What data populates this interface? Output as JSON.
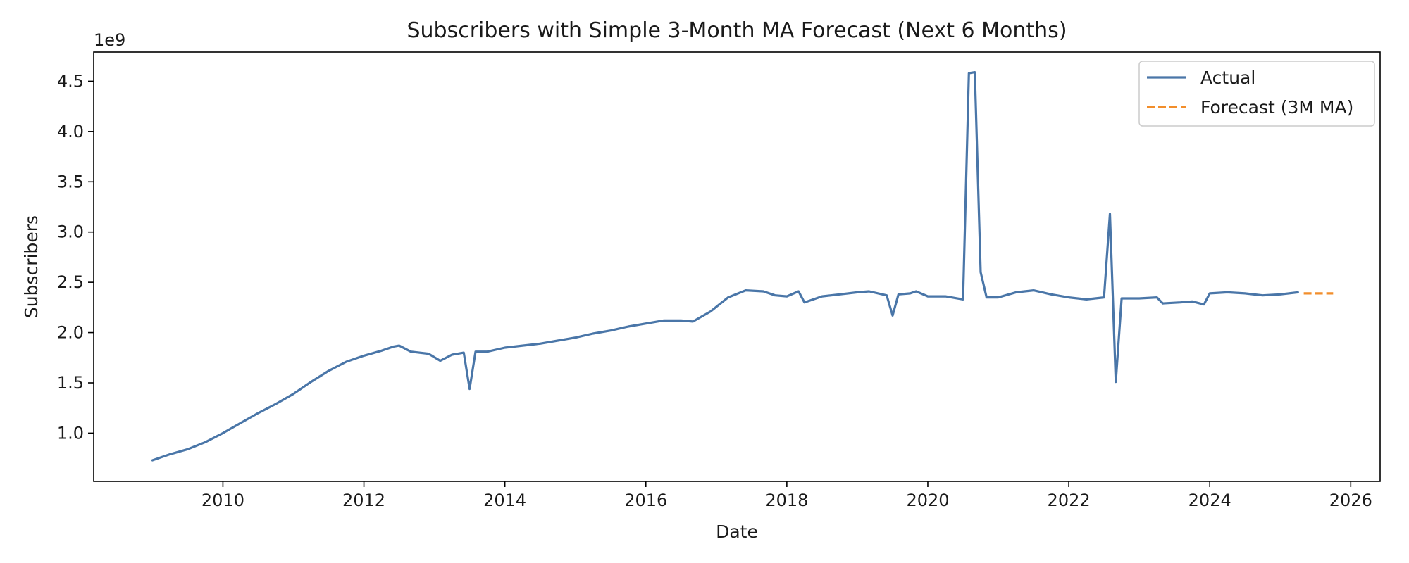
{
  "chart_data": {
    "type": "line",
    "title": "Subscribers with Simple 3-Month MA Forecast (Next 6 Months)",
    "xlabel": "Date",
    "ylabel": "Subscribers",
    "y_offset_label": "1e9",
    "xlim": [
      "2008-03-01",
      "2026-06-01"
    ],
    "ylim": [
      0.52,
      4.79
    ],
    "x_ticks": [
      "2010",
      "2012",
      "2014",
      "2016",
      "2018",
      "2020",
      "2022",
      "2024",
      "2026"
    ],
    "y_ticks": [
      "1.0",
      "1.5",
      "2.0",
      "2.5",
      "3.0",
      "3.5",
      "4.0",
      "4.5"
    ],
    "grid": false,
    "legend_position": "top-right",
    "series": [
      {
        "name": "Actual",
        "color": "#4a76a8",
        "style": "solid",
        "points": [
          [
            "2009-01",
            0.73
          ],
          [
            "2009-02",
            0.75
          ],
          [
            "2009-04",
            0.79
          ],
          [
            "2009-07",
            0.84
          ],
          [
            "2009-10",
            0.91
          ],
          [
            "2010-01",
            1.0
          ],
          [
            "2010-04",
            1.1
          ],
          [
            "2010-07",
            1.2
          ],
          [
            "2010-10",
            1.29
          ],
          [
            "2011-01",
            1.39
          ],
          [
            "2011-04",
            1.51
          ],
          [
            "2011-07",
            1.62
          ],
          [
            "2011-10",
            1.71
          ],
          [
            "2012-01",
            1.77
          ],
          [
            "2012-04",
            1.82
          ],
          [
            "2012-06",
            1.86
          ],
          [
            "2012-07",
            1.87
          ],
          [
            "2012-09",
            1.81
          ],
          [
            "2012-12",
            1.79
          ],
          [
            "2013-02",
            1.72
          ],
          [
            "2013-04",
            1.78
          ],
          [
            "2013-05",
            1.79
          ],
          [
            "2013-06",
            1.8
          ],
          [
            "2013-07",
            1.44
          ],
          [
            "2013-08",
            1.81
          ],
          [
            "2013-10",
            1.81
          ],
          [
            "2014-01",
            1.85
          ],
          [
            "2014-04",
            1.87
          ],
          [
            "2014-07",
            1.89
          ],
          [
            "2014-10",
            1.92
          ],
          [
            "2015-01",
            1.95
          ],
          [
            "2015-04",
            1.99
          ],
          [
            "2015-07",
            2.02
          ],
          [
            "2015-10",
            2.06
          ],
          [
            "2016-01",
            2.09
          ],
          [
            "2016-04",
            2.12
          ],
          [
            "2016-07",
            2.12
          ],
          [
            "2016-09",
            2.11
          ],
          [
            "2016-12",
            2.21
          ],
          [
            "2017-03",
            2.35
          ],
          [
            "2017-06",
            2.42
          ],
          [
            "2017-09",
            2.41
          ],
          [
            "2017-11",
            2.37
          ],
          [
            "2018-01",
            2.36
          ],
          [
            "2018-03",
            2.41
          ],
          [
            "2018-04",
            2.3
          ],
          [
            "2018-07",
            2.36
          ],
          [
            "2018-10",
            2.38
          ],
          [
            "2019-01",
            2.4
          ],
          [
            "2019-03",
            2.41
          ],
          [
            "2019-06",
            2.37
          ],
          [
            "2019-07",
            2.17
          ],
          [
            "2019-08",
            2.38
          ],
          [
            "2019-10",
            2.39
          ],
          [
            "2019-11",
            2.41
          ],
          [
            "2020-01",
            2.36
          ],
          [
            "2020-04",
            2.36
          ],
          [
            "2020-07",
            2.33
          ],
          [
            "2020-08",
            4.58
          ],
          [
            "2020-09",
            4.59
          ],
          [
            "2020-10",
            2.6
          ],
          [
            "2020-11",
            2.35
          ],
          [
            "2021-01",
            2.35
          ],
          [
            "2021-04",
            2.4
          ],
          [
            "2021-07",
            2.42
          ],
          [
            "2021-10",
            2.38
          ],
          [
            "2022-01",
            2.35
          ],
          [
            "2022-04",
            2.33
          ],
          [
            "2022-07",
            2.35
          ],
          [
            "2022-08",
            3.18
          ],
          [
            "2022-09",
            1.51
          ],
          [
            "2022-10",
            2.34
          ],
          [
            "2023-01",
            2.34
          ],
          [
            "2023-04",
            2.35
          ],
          [
            "2023-05",
            2.29
          ],
          [
            "2023-08",
            2.3
          ],
          [
            "2023-10",
            2.31
          ],
          [
            "2023-12",
            2.28
          ],
          [
            "2024-01",
            2.39
          ],
          [
            "2024-04",
            2.4
          ],
          [
            "2024-07",
            2.39
          ],
          [
            "2024-10",
            2.37
          ],
          [
            "2025-01",
            2.38
          ],
          [
            "2025-04",
            2.4
          ]
        ]
      },
      {
        "name": "Forecast (3M MA)",
        "color": "#f28e2b",
        "style": "dashed",
        "points": [
          [
            "2025-05",
            2.39
          ],
          [
            "2025-06",
            2.39
          ],
          [
            "2025-07",
            2.39
          ],
          [
            "2025-08",
            2.39
          ],
          [
            "2025-09",
            2.39
          ],
          [
            "2025-10",
            2.39
          ]
        ]
      }
    ]
  }
}
